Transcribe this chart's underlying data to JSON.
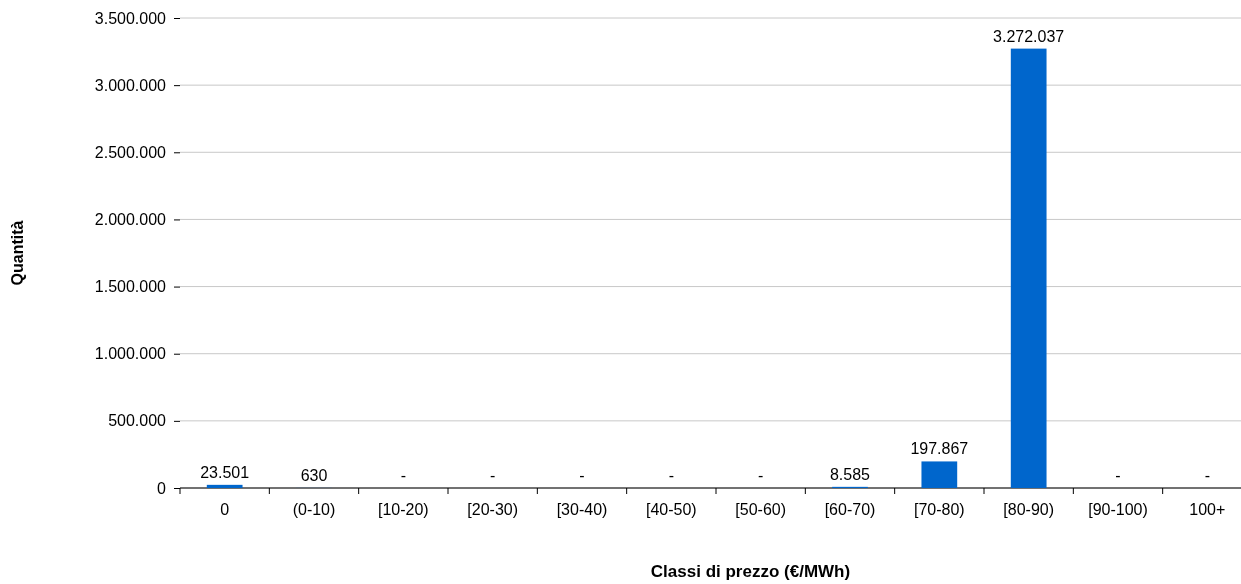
{
  "chart_data": {
    "type": "bar",
    "xlabel": "Classi di prezzo (€/MWh)",
    "ylabel": "Quantità",
    "categories": [
      "0",
      "(0-10)",
      "[10-20)",
      "[20-30)",
      "[30-40)",
      "[40-50)",
      "[50-60)",
      "[60-70)",
      "[70-80)",
      "[80-90)",
      "[90-100)",
      "100+"
    ],
    "values": [
      23501,
      630,
      0,
      0,
      0,
      0,
      0,
      8585,
      197867,
      3272037,
      0,
      0
    ],
    "value_labels": [
      "23.501",
      "630",
      "-",
      "-",
      "-",
      "-",
      "-",
      "8.585",
      "197.867",
      "3.272.037",
      "-",
      "-"
    ],
    "color": "#0066cc",
    "ylim": [
      0,
      3500000
    ],
    "yticks": [
      {
        "value": 0,
        "label": "0"
      },
      {
        "value": 500000,
        "label": "500.000"
      },
      {
        "value": 1000000,
        "label": "1.000.000"
      },
      {
        "value": 1500000,
        "label": "1.500.000"
      },
      {
        "value": 2000000,
        "label": "2.000.000"
      },
      {
        "value": 2500000,
        "label": "2.500.000"
      },
      {
        "value": 3000000,
        "label": "3.000.000"
      },
      {
        "value": 3500000,
        "label": "3.500.000"
      }
    ],
    "grid": "y"
  }
}
